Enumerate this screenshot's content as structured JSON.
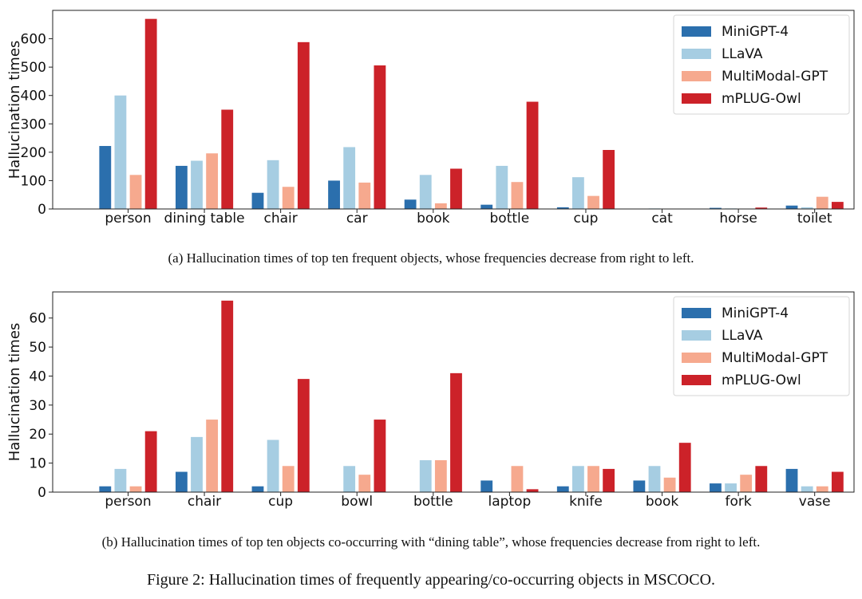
{
  "colors": {
    "MiniGPT-4": "#2b6fad",
    "LLaVA": "#a6cde2",
    "MultiModal-GPT": "#f6a98e",
    "mPLUG-Owl": "#cc2229"
  },
  "chart_data": [
    {
      "type": "bar",
      "id": "a",
      "title": "",
      "xlabel": "",
      "ylabel": "Hallucination times",
      "ylim": [
        0,
        700
      ],
      "yticks": [
        0,
        100,
        200,
        300,
        400,
        500,
        600
      ],
      "legend_position": "top-right",
      "categories": [
        "person",
        "dining table",
        "chair",
        "car",
        "book",
        "bottle",
        "cup",
        "cat",
        "horse",
        "toilet"
      ],
      "series": [
        {
          "name": "MiniGPT-4",
          "values": [
            222,
            152,
            57,
            100,
            33,
            15,
            6,
            1,
            4,
            12
          ]
        },
        {
          "name": "LLaVA",
          "values": [
            400,
            170,
            172,
            218,
            120,
            152,
            112,
            2,
            2,
            6
          ]
        },
        {
          "name": "MultiModal-GPT",
          "values": [
            120,
            196,
            78,
            93,
            20,
            95,
            46,
            1,
            1,
            43
          ]
        },
        {
          "name": "mPLUG-Owl",
          "values": [
            670,
            350,
            588,
            506,
            142,
            378,
            208,
            1,
            5,
            25
          ]
        }
      ]
    },
    {
      "type": "bar",
      "id": "b",
      "title": "",
      "xlabel": "",
      "ylabel": "Hallucination times",
      "ylim": [
        0,
        69
      ],
      "yticks": [
        0,
        10,
        20,
        30,
        40,
        50,
        60
      ],
      "legend_position": "top-right",
      "categories": [
        "person",
        "chair",
        "cup",
        "bowl",
        "bottle",
        "laptop",
        "knife",
        "book",
        "fork",
        "vase"
      ],
      "series": [
        {
          "name": "MiniGPT-4",
          "values": [
            2,
            7,
            2,
            0,
            0,
            4,
            2,
            4,
            3,
            8
          ]
        },
        {
          "name": "LLaVA",
          "values": [
            8,
            19,
            18,
            9,
            11,
            0,
            9,
            9,
            3,
            2
          ]
        },
        {
          "name": "MultiModal-GPT",
          "values": [
            2,
            25,
            9,
            6,
            11,
            9,
            9,
            5,
            6,
            2
          ]
        },
        {
          "name": "mPLUG-Owl",
          "values": [
            21,
            66,
            39,
            25,
            41,
            1,
            8,
            17,
            9,
            7
          ]
        }
      ]
    }
  ],
  "captions": {
    "a": "(a)  Hallucination times of top ten frequent objects, whose frequencies decrease from right to left.",
    "b": "(b)  Hallucination times of top ten objects co-occurring with “dining table”, whose frequencies decrease from right to left.",
    "figure": "Figure 2: Hallucination times of frequently appearing/co-occurring objects in MSCOCO."
  }
}
